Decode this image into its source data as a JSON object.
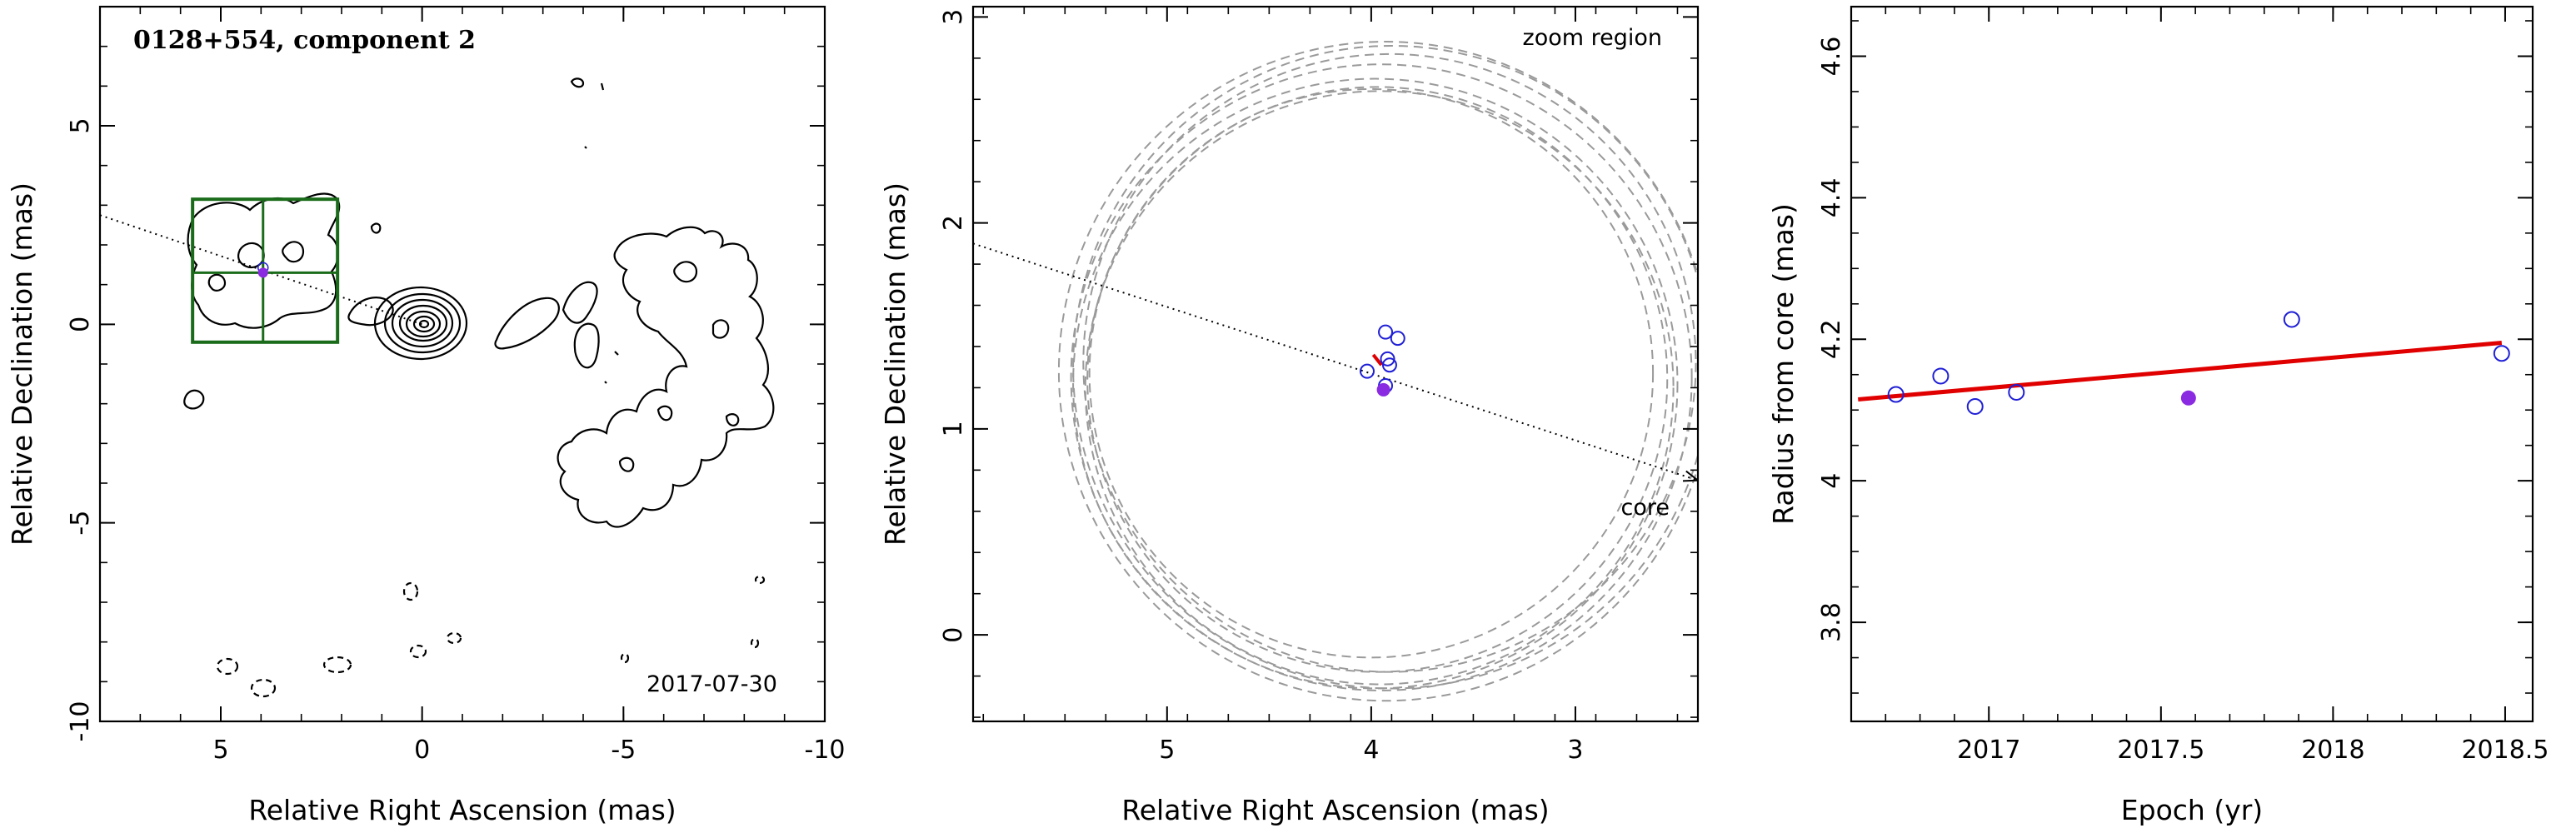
{
  "colors": {
    "frame": "#000000",
    "contour": "#000000",
    "box": "#1a6b1a",
    "open_marker": "#1f1fd6",
    "filled_marker": "#8a2be2",
    "fit_line": "#e00000",
    "circles": "#9a9a9a"
  },
  "chart_data": [
    {
      "type": "contour",
      "title": "0128+554, component 2",
      "epoch_label": "2017-07-30",
      "xlabel": "Relative Right Ascension (mas)",
      "ylabel": "Relative Declination (mas)",
      "xlim": [
        8,
        -10
      ],
      "ylim": [
        -10,
        8
      ],
      "xticks": [
        5,
        0,
        -5,
        -10
      ],
      "yticks": [
        5,
        0,
        -5,
        -10
      ],
      "jet_axis": {
        "from": [
          8,
          2.75
        ],
        "to": [
          0,
          0
        ]
      },
      "zoom_box": {
        "ra": [
          5.7,
          2.1
        ],
        "dec": [
          -0.45,
          3.15
        ]
      },
      "component_position": {
        "ra": 3.95,
        "dec": 1.3
      }
    },
    {
      "type": "scatter",
      "annotations": [
        "zoom region",
        "core"
      ],
      "xlabel": "Relative Right Ascension (mas)",
      "ylabel": "Relative Declination (mas)",
      "xlim": [
        5.95,
        2.4
      ],
      "ylim": [
        -0.42,
        3.05
      ],
      "xticks": [
        5,
        4,
        3
      ],
      "yticks": [
        0,
        1,
        2,
        3
      ],
      "jet_axis": {
        "from": [
          5.95,
          1.9
        ],
        "to": [
          2.4,
          0.75
        ]
      },
      "open_points": [
        {
          "ra": 4.02,
          "dec": 1.28
        },
        {
          "ra": 3.93,
          "dec": 1.47
        },
        {
          "ra": 3.87,
          "dec": 1.44
        },
        {
          "ra": 3.92,
          "dec": 1.34
        },
        {
          "ra": 3.91,
          "dec": 1.31
        },
        {
          "ra": 3.93,
          "dec": 1.21
        }
      ],
      "filled_point": {
        "ra": 3.94,
        "dec": 1.19
      },
      "motion_vector": {
        "from": [
          3.95,
          1.31
        ],
        "to": [
          3.99,
          1.36
        ]
      },
      "circles": [
        {
          "ra": 3.95,
          "dec": 1.25,
          "r": 1.52
        },
        {
          "ra": 3.93,
          "dec": 1.28,
          "r": 1.6
        },
        {
          "ra": 3.98,
          "dec": 1.22,
          "r": 1.48
        },
        {
          "ra": 3.97,
          "dec": 1.24,
          "r": 1.42
        },
        {
          "ra": 3.9,
          "dec": 1.3,
          "r": 1.56
        },
        {
          "ra": 3.96,
          "dec": 1.2,
          "r": 1.44
        },
        {
          "ra": 4.0,
          "dec": 1.27,
          "r": 1.38
        },
        {
          "ra": 3.91,
          "dec": 1.32,
          "r": 1.5
        }
      ]
    },
    {
      "type": "scatter",
      "xlabel": "Epoch (yr)",
      "ylabel": "Radius from core (mas)",
      "xlim": [
        16.6,
        18.58
      ],
      "xlim_display_offset": 2000,
      "ylim": [
        3.66,
        4.67
      ],
      "xticks": [
        "2017",
        "2017.5",
        "2018",
        "2018.5"
      ],
      "xtick_values": [
        2017,
        2017.5,
        2018,
        2018.5
      ],
      "yticks": [
        "3.8",
        "4",
        "4.2",
        "4.4",
        "4.6"
      ],
      "ytick_values": [
        3.8,
        4.0,
        4.2,
        4.4,
        4.6
      ],
      "open_points": [
        {
          "epoch": 2016.73,
          "r": 4.122
        },
        {
          "epoch": 2016.86,
          "r": 4.148
        },
        {
          "epoch": 2016.96,
          "r": 4.105
        },
        {
          "epoch": 2017.08,
          "r": 4.125
        },
        {
          "epoch": 2017.88,
          "r": 4.228
        },
        {
          "epoch": 2018.49,
          "r": 4.18
        }
      ],
      "filled_points": [
        {
          "epoch": 2017.58,
          "r": 4.117
        }
      ],
      "fit_line": {
        "from": [
          2016.62,
          4.115
        ],
        "to": [
          2018.49,
          4.195
        ]
      }
    }
  ]
}
